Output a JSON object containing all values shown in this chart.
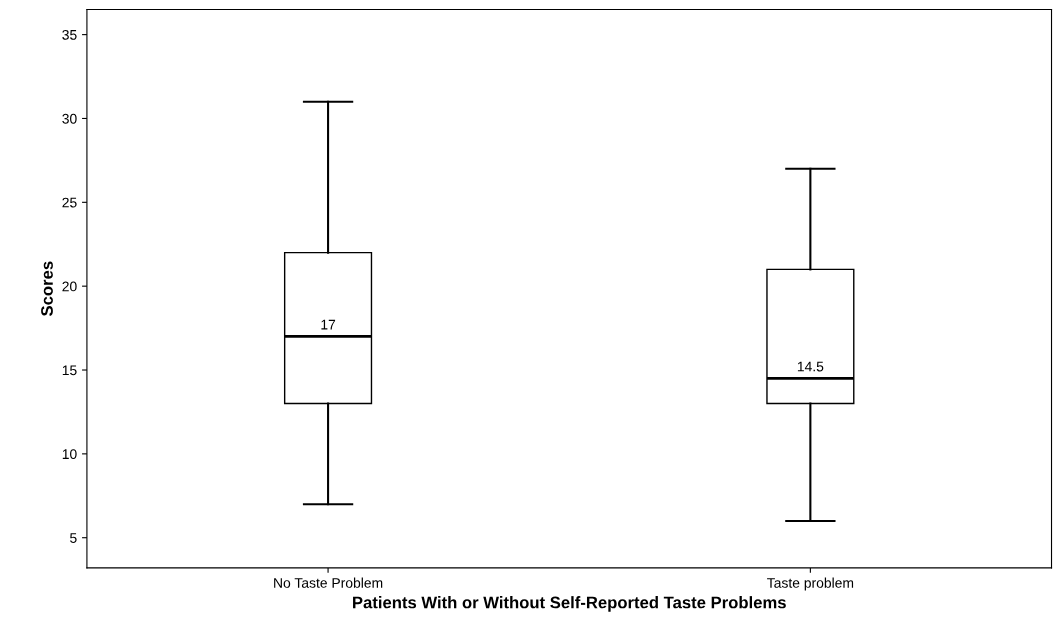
{
  "chart_data": {
    "type": "box",
    "xlabel": "Patients With or Without Self-Reported Taste Problems",
    "ylabel": "Scores",
    "categories": [
      "No Taste Problem",
      "Taste problem"
    ],
    "boxes": [
      {
        "low": 7,
        "q1": 13,
        "median": 17,
        "q3": 22,
        "high": 31
      },
      {
        "low": 6,
        "q1": 13,
        "median": 14.5,
        "q3": 21,
        "high": 27
      }
    ],
    "value_labels": [
      "17",
      "14.5"
    ],
    "ylim": [
      3.2,
      36.5
    ],
    "yticks": [
      5,
      10,
      15,
      20,
      25,
      30,
      35
    ],
    "grid": false,
    "legend": false
  }
}
